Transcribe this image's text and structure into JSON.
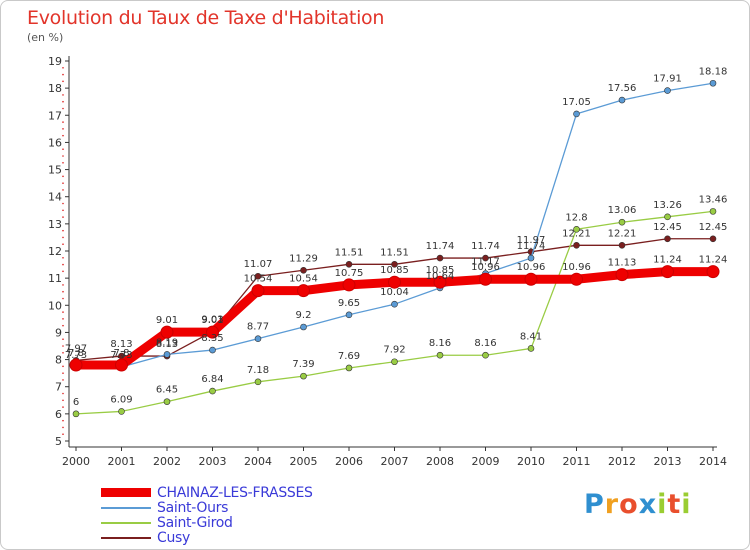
{
  "chart_data": {
    "type": "line",
    "title": "Evolution du Taux de Taxe d'Habitation",
    "subtitle": "(en %)",
    "x": [
      2000,
      2001,
      2002,
      2003,
      2004,
      2005,
      2006,
      2007,
      2008,
      2009,
      2010,
      2011,
      2012,
      2013,
      2014
    ],
    "ylim": [
      5,
      19
    ],
    "yticks": [
      5,
      6,
      7,
      8,
      9,
      10,
      11,
      12,
      13,
      14,
      15,
      16,
      17,
      18,
      19
    ],
    "grid": false,
    "legend_position": "bottom-left",
    "series": [
      {
        "name": "CHAINAZ-LES-FRASSES",
        "color": "#ee0000",
        "width": 9,
        "labels": [
          "7.8",
          "7.8",
          "9.01",
          "9.01",
          "10.54",
          "10.54",
          "10.75",
          "10.85",
          "10.85",
          "10.96",
          "10.96",
          "10.96",
          "11.13",
          "11.24",
          "11.24"
        ],
        "values": [
          7.8,
          7.8,
          9.01,
          9.01,
          10.54,
          10.54,
          10.75,
          10.85,
          10.85,
          10.96,
          10.96,
          10.96,
          11.13,
          11.24,
          11.24
        ]
      },
      {
        "name": "Saint-Ours",
        "color": "#5b9bd5",
        "width": 1.3,
        "labels": [
          "7.73",
          "7.73",
          "8.19",
          "8.35",
          "8.77",
          "9.2",
          "9.65",
          "10.04",
          "10.64",
          "11.17",
          "11.74",
          "17.05",
          "17.56",
          "17.91",
          "18.18"
        ],
        "values": [
          7.73,
          7.73,
          8.19,
          8.35,
          8.77,
          9.2,
          9.65,
          10.04,
          10.64,
          11.17,
          11.74,
          17.05,
          17.56,
          17.91,
          18.18
        ]
      },
      {
        "name": "Saint-Girod",
        "color": "#99cc44",
        "width": 1.3,
        "labels": [
          "6",
          "6.09",
          "6.45",
          "6.84",
          "7.18",
          "7.39",
          "7.69",
          "7.92",
          "8.16",
          "8.16",
          "8.41",
          "12.8",
          "13.06",
          "13.26",
          "13.46"
        ],
        "values": [
          6,
          6.09,
          6.45,
          6.84,
          7.18,
          7.39,
          7.69,
          7.92,
          8.16,
          8.16,
          8.41,
          12.8,
          13.06,
          13.26,
          13.46
        ]
      },
      {
        "name": "Cusy",
        "color": "#7a1f1f",
        "width": 1.3,
        "labels": [
          "7.97",
          "8.13",
          "8.13",
          "9.03",
          "11.07",
          "11.29",
          "11.51",
          "11.51",
          "11.74",
          "11.74",
          "11.97",
          "12.21",
          "12.21",
          "12.45",
          "12.45"
        ],
        "values": [
          7.97,
          8.13,
          8.13,
          9.03,
          11.07,
          11.29,
          11.51,
          11.51,
          11.74,
          11.74,
          11.97,
          12.21,
          12.21,
          12.45,
          12.45
        ]
      }
    ]
  },
  "logo": {
    "letters": [
      "P",
      "r",
      "o",
      "x",
      "i",
      "t",
      "i"
    ],
    "colors": [
      "#2f8fd0",
      "#f0a020",
      "#e94f2d",
      "#2f8fd0",
      "#9acd32",
      "#e94f2d",
      "#9acd32"
    ]
  }
}
